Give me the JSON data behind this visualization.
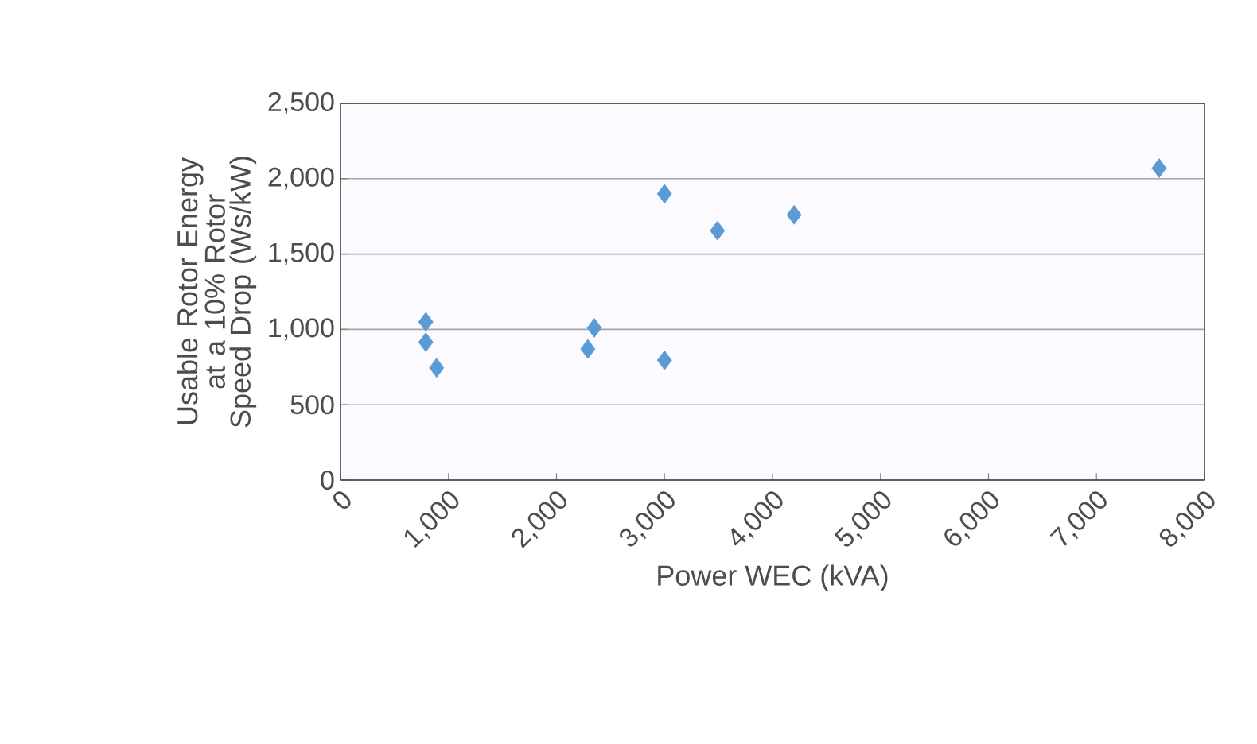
{
  "chart_data": {
    "type": "scatter",
    "xlabel": "Power WEC (kVA)",
    "ylabel": "Usable Rotor Energy at a 10% Rotor Speed Drop (Ws/kW)",
    "x": [
      790,
      790,
      890,
      2290,
      2350,
      3000,
      3000,
      3490,
      4200,
      7580
    ],
    "series": [
      {
        "color": "#5b9bd5",
        "values": [
          1050,
          915,
          745,
          870,
          1010,
          1900,
          795,
          1655,
          1760,
          2070
        ]
      }
    ],
    "xlim": [
      0,
      8000
    ],
    "ylim": [
      0,
      2500
    ],
    "xticks": [
      {
        "value": 0,
        "label": "0"
      },
      {
        "value": 1000,
        "label": "1,000"
      },
      {
        "value": 2000,
        "label": "2,000"
      },
      {
        "value": 3000,
        "label": "3,000"
      },
      {
        "value": 4000,
        "label": "4,000"
      },
      {
        "value": 5000,
        "label": "5,000"
      },
      {
        "value": 6000,
        "label": "6,000"
      },
      {
        "value": 7000,
        "label": "7,000"
      },
      {
        "value": 8000,
        "label": "8,000"
      }
    ],
    "yticks": [
      {
        "value": 0,
        "label": "0"
      },
      {
        "value": 500,
        "label": "500"
      },
      {
        "value": 1000,
        "label": "1,000"
      },
      {
        "value": 1500,
        "label": "1,500"
      },
      {
        "value": 2000,
        "label": "2,000"
      },
      {
        "value": 2500,
        "label": "2,500"
      }
    ],
    "grid": "y",
    "marker": "diamond"
  }
}
